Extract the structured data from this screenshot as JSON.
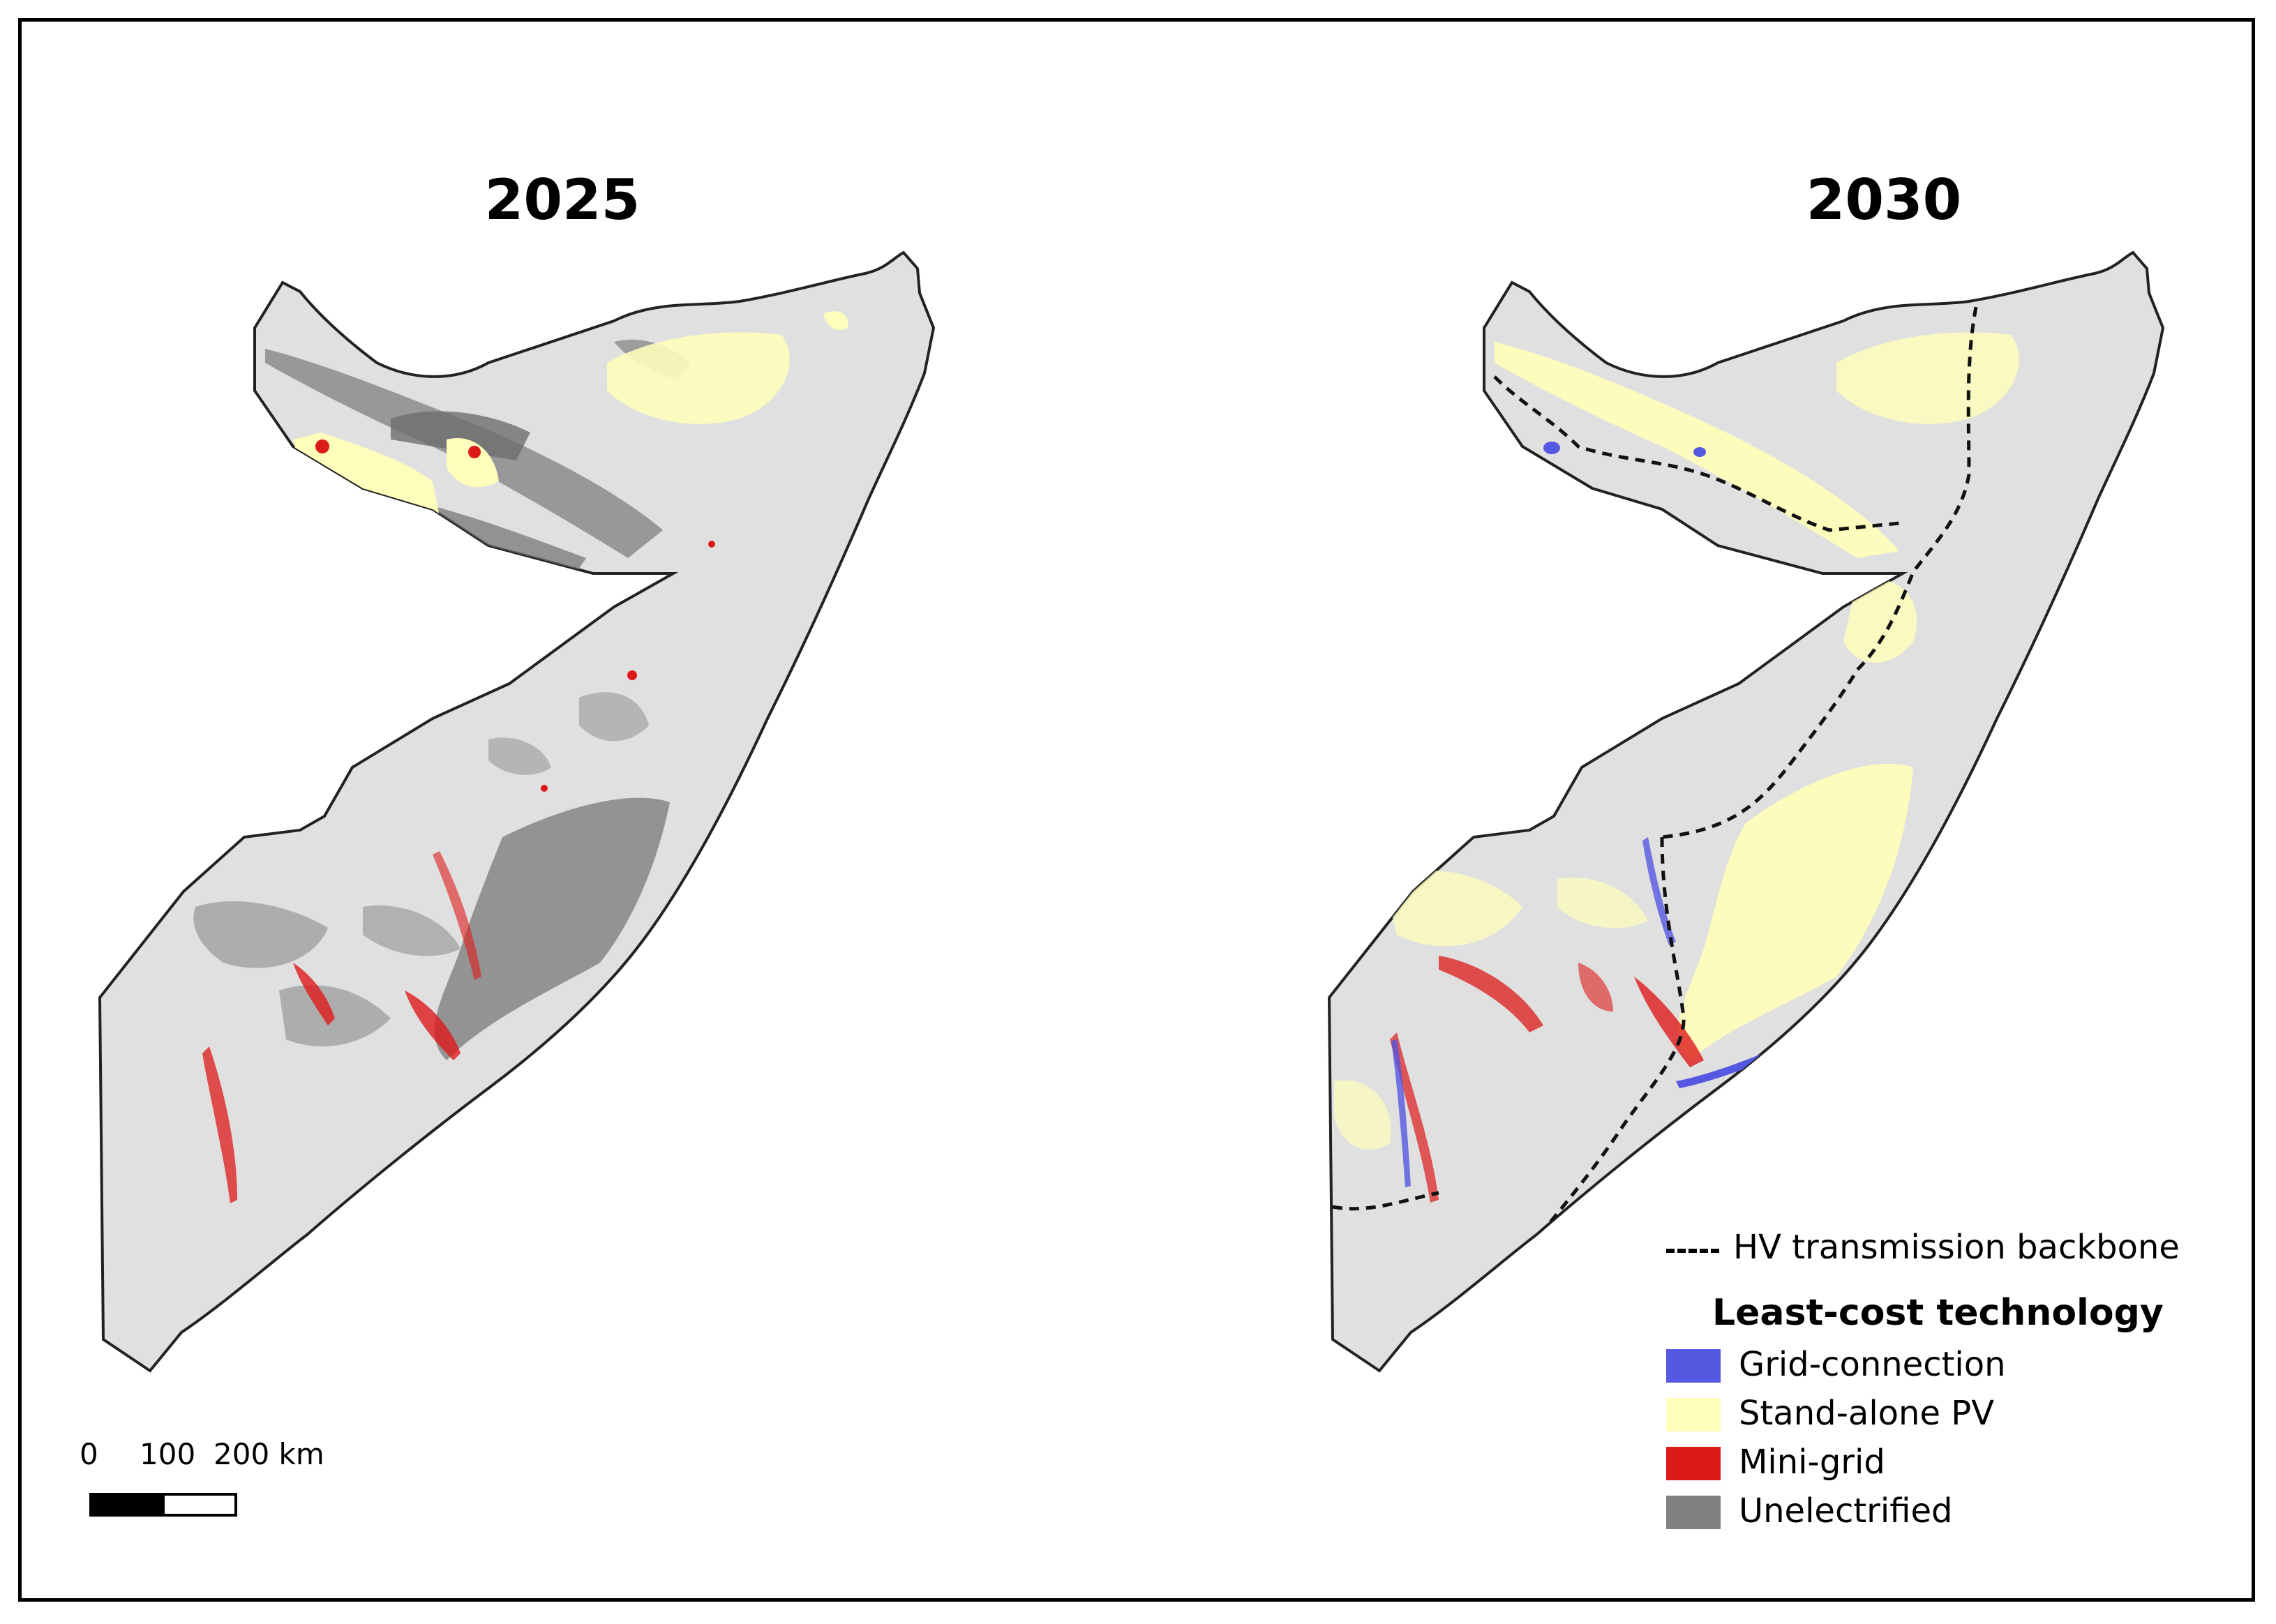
{
  "maps": {
    "left_title": "2025",
    "right_title": "2030"
  },
  "scale": {
    "labels": [
      "0",
      "100",
      "200 km"
    ]
  },
  "legend": {
    "line_label": "HV transmission backbone",
    "heading": "Least-cost technology",
    "items": [
      {
        "label": "Grid-connection",
        "color": "#5558e0"
      },
      {
        "label": "Stand-alone PV",
        "color": "#fefdbb"
      },
      {
        "label": "Mini-grid",
        "color": "#dd1a1a"
      },
      {
        "label": "Unelectrified",
        "color": "#808080"
      }
    ]
  },
  "colors": {
    "land": "#e0e0e0",
    "outline": "#222222",
    "transmission": "#111111"
  }
}
